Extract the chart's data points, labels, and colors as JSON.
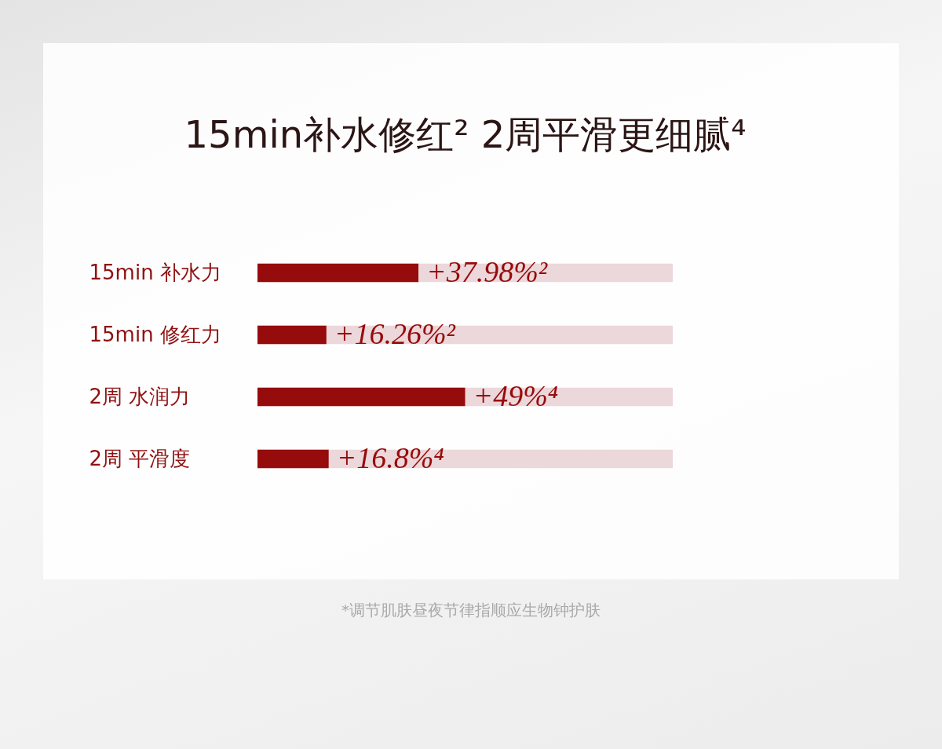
{
  "chart_data": {
    "type": "bar",
    "orientation": "horizontal",
    "title": "15min补水修红²  2周平滑更细腻⁴",
    "categories": [
      "15min 补水力",
      "15min 修红力",
      "2周 水润力",
      "2周 平滑度"
    ],
    "values": [
      37.98,
      16.26,
      49,
      16.8
    ],
    "value_labels": [
      "+37.98%²",
      "+16.26%²",
      "+49%⁴",
      "+16.8%⁴"
    ],
    "color": "#960b0b",
    "tick_labels": "y",
    "annotations": [
      "*调节肌肤昼夜节律指顺应生物钟护肤"
    ]
  }
}
